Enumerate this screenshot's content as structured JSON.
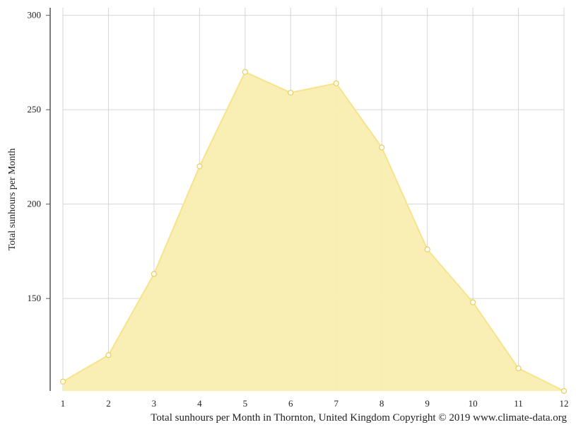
{
  "chart_data": {
    "type": "area",
    "title": "",
    "xlabel": "",
    "ylabel": "Total sunhours per Month",
    "caption": "Total sunhours per Month in Thornton, United Kingdom Copyright © 2019 www.climate-data.org",
    "x": [
      1,
      2,
      3,
      4,
      5,
      6,
      7,
      8,
      9,
      10,
      11,
      12
    ],
    "x_tick_labels": [
      "1",
      "2",
      "3",
      "4",
      "5",
      "6",
      "7",
      "8",
      "9",
      "10",
      "11",
      "12"
    ],
    "series": [
      {
        "values": [
          106,
          120,
          163,
          220,
          270,
          259,
          264,
          230,
          176,
          148,
          113,
          101
        ]
      }
    ],
    "y_ticks": [
      150,
      200,
      250,
      300
    ],
    "ylim": [
      101,
      304
    ],
    "grid": true,
    "legend": "none",
    "colors": {
      "fill": "#f9eeb1",
      "line": "#f6e38b",
      "grid": "#d6d6d6",
      "axis": "#555555"
    }
  }
}
